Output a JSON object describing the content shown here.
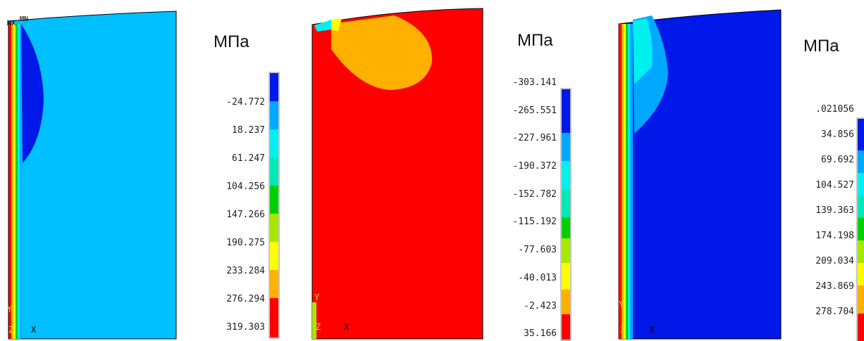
{
  "colors": {
    "blue": "#0018e8",
    "mid_blue": "#00a8ff",
    "light_blue": "#00c6ff",
    "cyan": "#00f0f0",
    "aqua": "#00e8b8",
    "green": "#00d000",
    "yellow_green": "#a8e800",
    "yellow": "#ffff00",
    "orange": "#ffb000",
    "red": "#ff0000",
    "panel1_bg": "#00c0ff",
    "panel2_bg": "#ff0000",
    "panel3_bg": "#0018e8"
  },
  "panels": [
    {
      "unit": "МПа",
      "legend": [
        "-24.772",
        "18.237",
        "61.247",
        "104.256",
        "147.266",
        "190.275",
        "233.284",
        "276.294",
        "319.303"
      ],
      "labels": {
        "mx": "MX",
        "mn": "MN",
        "y": "Y",
        "z": "Z",
        "x": "X"
      }
    },
    {
      "unit": "МПа",
      "legend": [
        "-303.141",
        "-265.551",
        "-227.961",
        "-190.372",
        "-152.782",
        "-115.192",
        "-77.603",
        "-40.013",
        "-2.423",
        "35.166"
      ],
      "labels": {
        "y": "Y",
        "z": "Z",
        "x": "X"
      }
    },
    {
      "unit": "МПа",
      "legend": [
        ".021056",
        "34.856",
        "69.692",
        "104.527",
        "139.363",
        "174.198",
        "209.034",
        "243.869",
        "278.704"
      ],
      "labels": {
        "y": "Y",
        "z": "Z",
        "x": "X"
      }
    }
  ]
}
